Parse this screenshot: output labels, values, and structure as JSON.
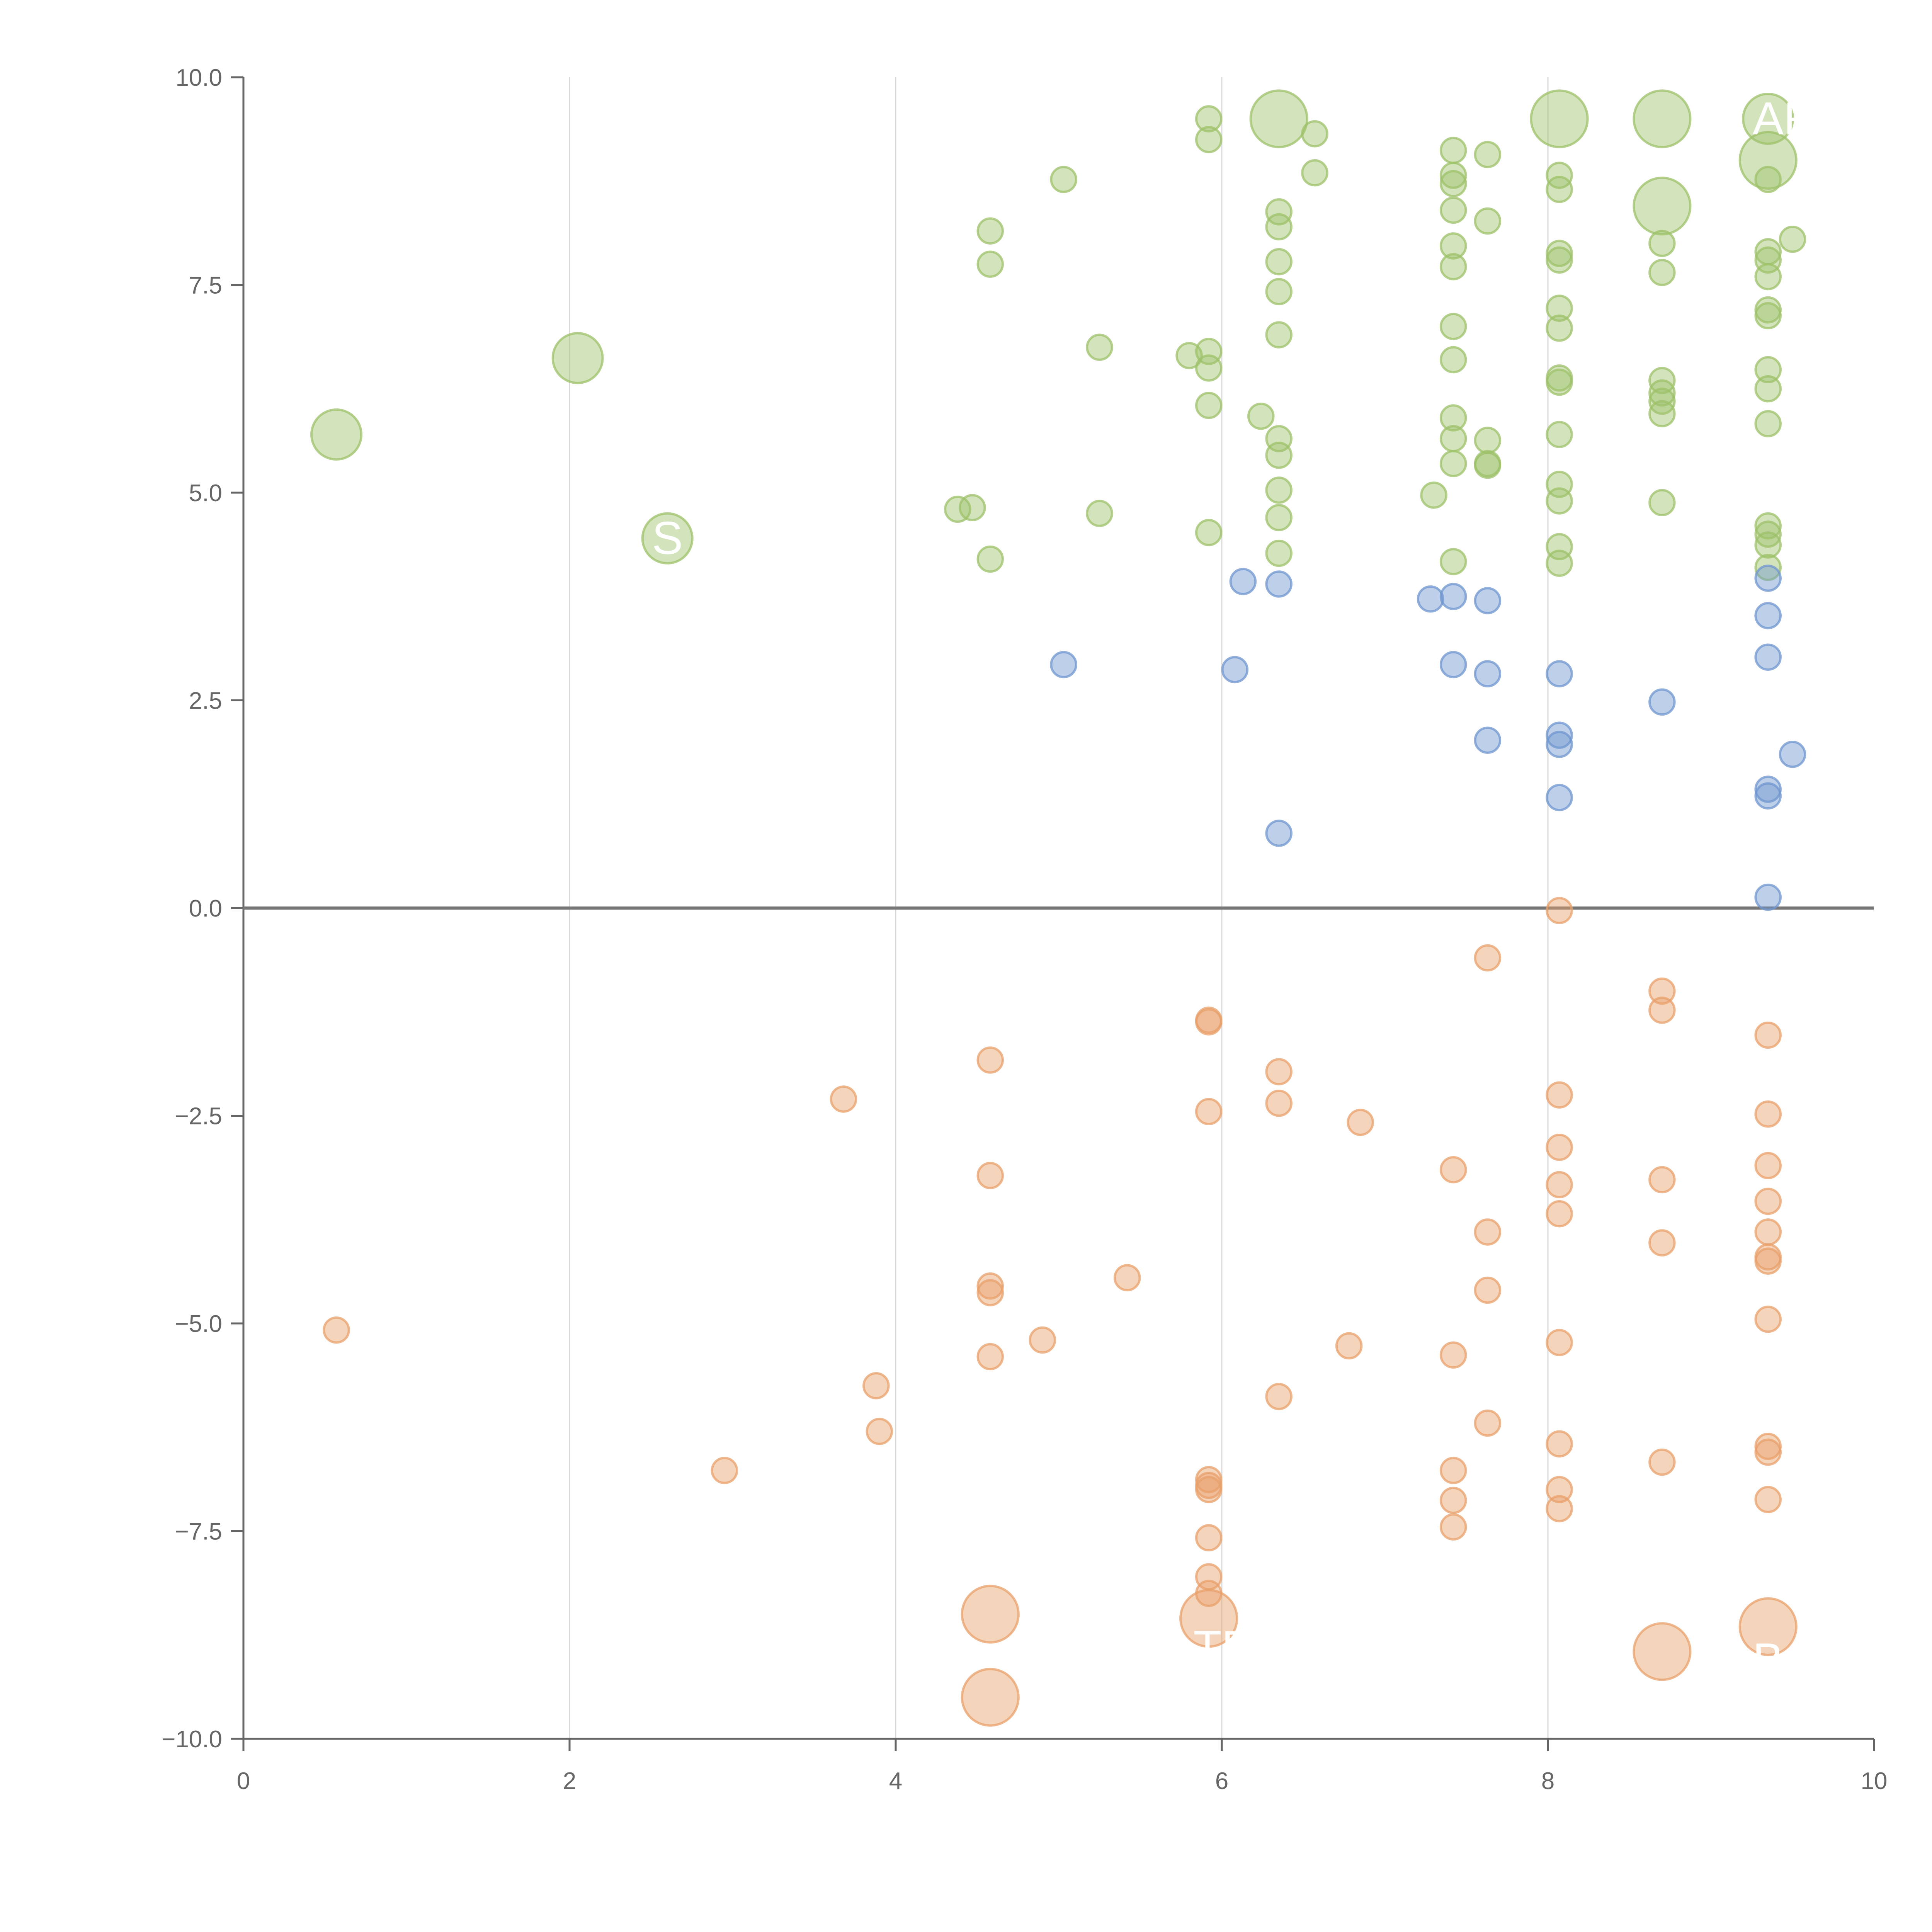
{
  "colors": {
    "positive": "#9dc16a",
    "negative": "#e8a06b",
    "neutral": "#6f96cf",
    "axis": "#666666",
    "grid": "#d9d9d9",
    "zero_line": "#777777",
    "label_text": "#ffffff"
  },
  "chart_data": {
    "type": "scatter",
    "title": "",
    "xlabel": "",
    "ylabel": "",
    "xlim": [
      0,
      10
    ],
    "ylim": [
      -10,
      10
    ],
    "x_ticks": [
      0,
      2,
      4,
      6,
      8,
      10
    ],
    "x_tick_labels": [
      "0",
      "2",
      "4",
      "6",
      "8",
      "10"
    ],
    "y_ticks": [
      10,
      7.5,
      5,
      2.5,
      0,
      -2.5,
      -5,
      -7.5,
      -10
    ],
    "y_tick_labels": [
      "10.0",
      "7.5",
      "5.0",
      "2.5",
      "0.0",
      "−2.5",
      "−5.0",
      "−7.5",
      "−10.0"
    ],
    "grid": {
      "x": true,
      "y": false
    },
    "zero_line": true,
    "series": [
      {
        "name": "positive",
        "color": "#9dc16a",
        "points": [
          [
            0.57,
            5.7,
            3
          ],
          [
            2.05,
            6.62,
            3
          ],
          [
            2.6,
            4.45,
            3
          ],
          [
            6.35,
            9.5,
            3.4
          ],
          [
            8.07,
            9.5,
            3.4
          ],
          [
            8.7,
            9.5,
            3.4
          ],
          [
            8.7,
            8.45,
            3.4
          ],
          [
            9.35,
            9.0,
            3.4
          ],
          [
            9.35,
            9.5,
            3
          ],
          [
            4.38,
            4.8,
            1.5
          ],
          [
            4.47,
            4.82,
            1.5
          ],
          [
            4.58,
            8.15,
            1.5
          ],
          [
            4.58,
            7.75,
            1.5
          ],
          [
            4.58,
            4.2,
            1.5
          ],
          [
            5.03,
            8.77,
            1.5
          ],
          [
            5.25,
            6.75,
            1.5
          ],
          [
            5.25,
            4.75,
            1.5
          ],
          [
            5.8,
            6.65,
            1.5
          ],
          [
            5.92,
            9.5,
            1.5
          ],
          [
            5.92,
            9.25,
            1.5
          ],
          [
            5.92,
            6.7,
            1.5
          ],
          [
            5.92,
            6.5,
            1.5
          ],
          [
            5.92,
            6.05,
            1.5
          ],
          [
            5.92,
            4.52,
            1.5
          ],
          [
            6.24,
            5.92,
            1.5
          ],
          [
            6.35,
            8.38,
            1.5
          ],
          [
            6.35,
            8.2,
            1.5
          ],
          [
            6.35,
            7.78,
            1.5
          ],
          [
            6.35,
            7.42,
            1.5
          ],
          [
            6.35,
            6.9,
            1.5
          ],
          [
            6.35,
            5.65,
            1.5
          ],
          [
            6.35,
            5.45,
            1.5
          ],
          [
            6.35,
            5.03,
            1.5
          ],
          [
            6.35,
            4.7,
            1.5
          ],
          [
            6.35,
            4.27,
            1.5
          ],
          [
            6.57,
            9.32,
            1.5
          ],
          [
            6.57,
            8.85,
            1.5
          ],
          [
            7.3,
            4.97,
            1.5
          ],
          [
            7.42,
            9.12,
            1.5
          ],
          [
            7.42,
            8.82,
            1.5
          ],
          [
            7.42,
            8.72,
            1.5
          ],
          [
            7.42,
            8.4,
            1.5
          ],
          [
            7.42,
            7.97,
            1.5
          ],
          [
            7.42,
            7.72,
            1.5
          ],
          [
            7.42,
            7.0,
            1.5
          ],
          [
            7.42,
            6.6,
            1.5
          ],
          [
            7.42,
            5.9,
            1.5
          ],
          [
            7.42,
            5.65,
            1.5
          ],
          [
            7.42,
            5.35,
            1.5
          ],
          [
            7.42,
            4.17,
            1.5
          ],
          [
            7.63,
            9.07,
            1.5
          ],
          [
            7.63,
            8.27,
            1.5
          ],
          [
            7.63,
            5.63,
            1.5
          ],
          [
            7.63,
            5.33,
            1.5
          ],
          [
            7.63,
            5.35,
            1.5
          ],
          [
            8.07,
            8.82,
            1.5
          ],
          [
            8.07,
            8.65,
            1.5
          ],
          [
            8.07,
            7.88,
            1.5
          ],
          [
            8.07,
            7.8,
            1.5
          ],
          [
            8.07,
            7.22,
            1.5
          ],
          [
            8.07,
            6.98,
            1.5
          ],
          [
            8.07,
            6.38,
            1.5
          ],
          [
            8.07,
            6.33,
            1.5
          ],
          [
            8.07,
            5.7,
            1.5
          ],
          [
            8.07,
            5.1,
            1.5
          ],
          [
            8.07,
            4.9,
            1.5
          ],
          [
            8.07,
            4.35,
            1.5
          ],
          [
            8.07,
            4.15,
            1.5
          ],
          [
            8.7,
            8.0,
            1.5
          ],
          [
            8.7,
            7.65,
            1.5
          ],
          [
            8.7,
            6.35,
            1.5
          ],
          [
            8.7,
            6.2,
            1.5
          ],
          [
            8.7,
            6.1,
            1.5
          ],
          [
            8.7,
            5.95,
            1.5
          ],
          [
            8.7,
            4.88,
            1.5
          ],
          [
            9.35,
            8.77,
            1.5
          ],
          [
            9.35,
            7.9,
            1.5
          ],
          [
            9.35,
            7.8,
            1.5
          ],
          [
            9.35,
            7.6,
            1.5
          ],
          [
            9.35,
            7.2,
            1.5
          ],
          [
            9.35,
            7.13,
            1.5
          ],
          [
            9.35,
            6.48,
            1.5
          ],
          [
            9.35,
            6.25,
            1.5
          ],
          [
            9.35,
            5.83,
            1.5
          ],
          [
            9.35,
            4.6,
            1.5
          ],
          [
            9.35,
            4.5,
            1.5
          ],
          [
            9.35,
            4.37,
            1.5
          ],
          [
            9.35,
            4.1,
            1.5
          ],
          [
            9.5,
            8.05,
            1.5
          ]
        ]
      },
      {
        "name": "neutral",
        "color": "#6f96cf",
        "points": [
          [
            5.03,
            2.93,
            1.5
          ],
          [
            6.08,
            2.87,
            1.5
          ],
          [
            6.13,
            3.93,
            1.5
          ],
          [
            6.35,
            3.9,
            1.5
          ],
          [
            6.35,
            0.9,
            1.5
          ],
          [
            7.28,
            3.72,
            1.5
          ],
          [
            7.42,
            3.75,
            1.5
          ],
          [
            7.42,
            2.93,
            1.5
          ],
          [
            7.63,
            3.7,
            1.5
          ],
          [
            7.63,
            2.82,
            1.5
          ],
          [
            7.63,
            2.02,
            1.5
          ],
          [
            8.07,
            2.82,
            1.5
          ],
          [
            8.07,
            2.08,
            1.5
          ],
          [
            8.07,
            1.97,
            1.5
          ],
          [
            8.07,
            1.33,
            1.5
          ],
          [
            8.7,
            2.48,
            1.5
          ],
          [
            9.35,
            3.97,
            1.5
          ],
          [
            9.35,
            3.52,
            1.5
          ],
          [
            9.35,
            3.02,
            1.5
          ],
          [
            9.35,
            1.43,
            1.5
          ],
          [
            9.35,
            1.35,
            1.5
          ],
          [
            9.35,
            0.13,
            1.5
          ],
          [
            9.5,
            1.85,
            1.5
          ]
        ]
      },
      {
        "name": "negative",
        "color": "#e8a06b",
        "points": [
          [
            4.58,
            -8.5,
            3.4
          ],
          [
            4.58,
            -9.5,
            3.4
          ],
          [
            5.92,
            -8.55,
            3.4
          ],
          [
            8.7,
            -8.95,
            3.4
          ],
          [
            9.35,
            -8.65,
            3.4
          ],
          [
            0.57,
            -5.08,
            1.5
          ],
          [
            2.95,
            -6.77,
            1.5
          ],
          [
            3.68,
            -2.3,
            1.5
          ],
          [
            3.88,
            -5.75,
            1.5
          ],
          [
            3.9,
            -6.3,
            1.5
          ],
          [
            4.58,
            -1.83,
            1.5
          ],
          [
            4.58,
            -3.22,
            1.5
          ],
          [
            4.58,
            -4.55,
            1.5
          ],
          [
            4.58,
            -4.63,
            1.5
          ],
          [
            4.58,
            -5.4,
            1.5
          ],
          [
            4.9,
            -5.2,
            1.5
          ],
          [
            5.42,
            -4.45,
            1.5
          ],
          [
            5.92,
            -1.35,
            1.5
          ],
          [
            5.92,
            -1.37,
            1.5
          ],
          [
            5.92,
            -2.45,
            1.5
          ],
          [
            5.92,
            -6.88,
            1.5
          ],
          [
            5.92,
            -6.95,
            1.5
          ],
          [
            5.92,
            -7.0,
            1.5
          ],
          [
            5.92,
            -7.58,
            1.5
          ],
          [
            5.92,
            -8.05,
            1.5
          ],
          [
            5.92,
            -8.25,
            1.5
          ],
          [
            6.35,
            -1.97,
            1.5
          ],
          [
            6.35,
            -2.35,
            1.5
          ],
          [
            6.35,
            -5.88,
            1.5
          ],
          [
            6.78,
            -5.27,
            1.5
          ],
          [
            6.85,
            -2.58,
            1.5
          ],
          [
            7.42,
            -3.15,
            1.5
          ],
          [
            7.42,
            -5.38,
            1.5
          ],
          [
            7.42,
            -6.77,
            1.5
          ],
          [
            7.42,
            -7.13,
            1.5
          ],
          [
            7.42,
            -7.45,
            1.5
          ],
          [
            7.63,
            -0.6,
            1.5
          ],
          [
            7.63,
            -3.9,
            1.5
          ],
          [
            7.63,
            -4.6,
            1.5
          ],
          [
            7.63,
            -6.2,
            1.5
          ],
          [
            8.07,
            -0.03,
            1.5
          ],
          [
            8.07,
            -2.25,
            1.5
          ],
          [
            8.07,
            -2.88,
            1.5
          ],
          [
            8.07,
            -3.33,
            1.5
          ],
          [
            8.07,
            -3.68,
            1.5
          ],
          [
            8.07,
            -5.23,
            1.5
          ],
          [
            8.07,
            -6.45,
            1.5
          ],
          [
            8.07,
            -7.0,
            1.5
          ],
          [
            8.07,
            -7.23,
            1.5
          ],
          [
            8.7,
            -1.0,
            1.5
          ],
          [
            8.7,
            -1.23,
            1.5
          ],
          [
            8.7,
            -3.27,
            1.5
          ],
          [
            8.7,
            -4.03,
            1.5
          ],
          [
            8.7,
            -6.67,
            1.5
          ],
          [
            9.35,
            -1.53,
            1.5
          ],
          [
            9.35,
            -2.48,
            1.5
          ],
          [
            9.35,
            -3.1,
            1.5
          ],
          [
            9.35,
            -3.53,
            1.5
          ],
          [
            9.35,
            -3.9,
            1.5
          ],
          [
            9.35,
            -4.2,
            1.5
          ],
          [
            9.35,
            -4.25,
            1.5
          ],
          [
            9.35,
            -4.95,
            1.5
          ],
          [
            9.35,
            -6.48,
            1.5
          ],
          [
            9.35,
            -6.55,
            1.5
          ],
          [
            9.35,
            -7.12,
            1.5
          ]
        ]
      }
    ],
    "annotations": [
      {
        "text": "S",
        "x": 2.6,
        "y": 4.45
      },
      {
        "text": "AR",
        "x": 9.35,
        "y": 9.5
      },
      {
        "text": "TRA",
        "x": 5.92,
        "y": -8.9
      },
      {
        "text": "BC",
        "x": 9.35,
        "y": -9.05
      }
    ]
  }
}
